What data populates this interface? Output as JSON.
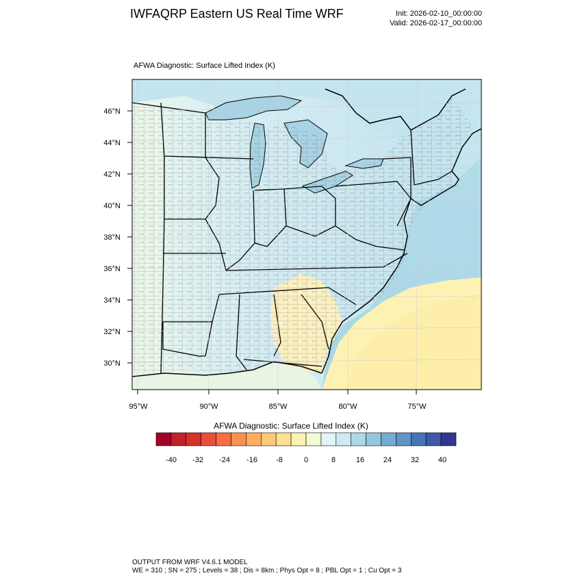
{
  "header": {
    "title": "IWFAQRP Eastern US Real Time WRF",
    "init": "Init: 2026-02-10_00:00:00",
    "valid": "Valid: 2026-02-17_00:00:00"
  },
  "plot": {
    "title": "AFWA Diagnostic: Surface Lifted Index   (K)",
    "lat_labels": [
      "46°N",
      "44°N",
      "42°N",
      "40°N",
      "38°N",
      "36°N",
      "34°N",
      "32°N",
      "30°N"
    ],
    "lon_labels": [
      "95°W",
      "90°W",
      "85°W",
      "80°W",
      "75°W"
    ],
    "colors": {
      "water_blue": "#b3dcea",
      "land_pale": "#e6f3f0",
      "yellow_warm": "#fdf2b4",
      "boundary": "#000000"
    }
  },
  "colorbar": {
    "title": "AFWA Diagnostic: Surface Lifted Index  (K)",
    "labels": [
      "-40",
      "-32",
      "-24",
      "-16",
      "-8",
      "0",
      "8",
      "16",
      "24",
      "32",
      "40"
    ],
    "colors": [
      "#a50026",
      "#c2212a",
      "#d73027",
      "#e9503a",
      "#f46d43",
      "#f99153",
      "#fdae61",
      "#fdc878",
      "#fee090",
      "#fef2b0",
      "#f3fad0",
      "#e0f3f8",
      "#cdeaf2",
      "#abd9e9",
      "#93c6df",
      "#74add1",
      "#5f94c4",
      "#4575b4",
      "#3e59a7",
      "#313695"
    ]
  },
  "footer": {
    "line1": "OUTPUT FROM WRF V4.6.1 MODEL",
    "line2": "WE = 310 ; SN = 275 ; Levels = 38 ; Dis = 8km ; Phys Opt = 8 ; PBL Opt = 1 ; Cu Opt = 3"
  }
}
